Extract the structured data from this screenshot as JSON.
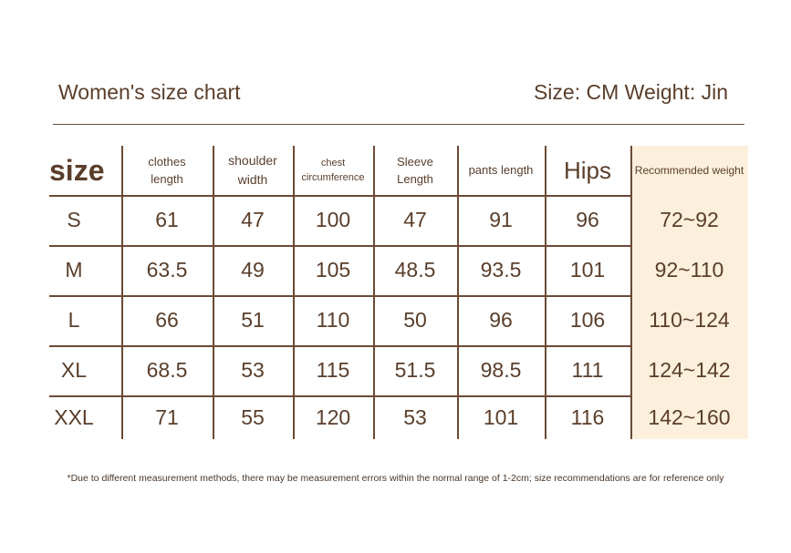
{
  "header": {
    "title": "Women's size chart",
    "units": "Size: CM Weight: Jin"
  },
  "table": {
    "columns": [
      "size",
      "clothes\nlength",
      "shoulder\nwidth",
      "chest\ncircumference",
      "Sleeve\nLength",
      "pants length",
      "Hips",
      "Recommended weight"
    ],
    "rows": [
      [
        "S",
        "61",
        "47",
        "100",
        "47",
        "91",
        "96",
        "72~92"
      ],
      [
        "M",
        "63.5",
        "49",
        "105",
        "48.5",
        "93.5",
        "101",
        "92~110"
      ],
      [
        "L",
        "66",
        "51",
        "110",
        "50",
        "96",
        "106",
        "110~124"
      ],
      [
        "XL",
        "68.5",
        "53",
        "115",
        "51.5",
        "98.5",
        "111",
        "124~142"
      ],
      [
        "XXL",
        "71",
        "55",
        "120",
        "53",
        "101",
        "116",
        "142~160"
      ]
    ]
  },
  "footnote": "*Due to different measurement methods, there may be measurement errors within the normal range of 1-2cm; size recommendations are for reference only"
}
